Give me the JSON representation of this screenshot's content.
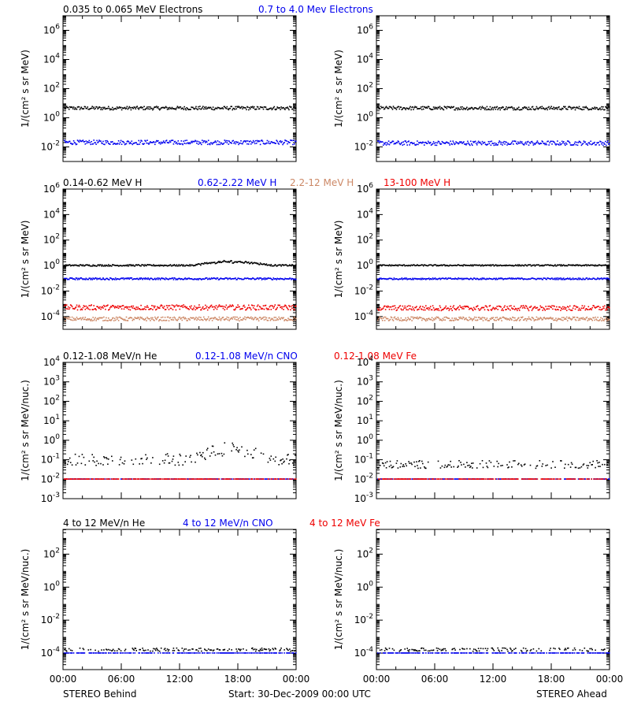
{
  "colors": {
    "black": "#000000",
    "blue": "#0000ee",
    "salmon": "#cc8866",
    "red": "#ee0000"
  },
  "footer": {
    "left": "STEREO Behind",
    "center": "Start: 30-Dec-2009 00:00 UTC",
    "right": "STEREO Ahead"
  },
  "chart_data": [
    {
      "type": "scatter",
      "row": "electrons",
      "legend": [
        {
          "label": "0.035 to 0.065 MeV Electrons",
          "color": "#000000"
        },
        {
          "label": "0.7 to 4.0 Mev Electrons",
          "color": "#0000ee"
        }
      ],
      "ylabel": "1/(cm² s sr MeV)",
      "yscale": "log",
      "ylim_log10": [
        -3,
        7
      ],
      "yticks_log10": [
        -2,
        0,
        2,
        4,
        6
      ],
      "xlim_hours": [
        0,
        24
      ],
      "xticks": [
        "00:00",
        "06:00",
        "12:00",
        "18:00",
        "00:00"
      ],
      "panels": [
        {
          "spacecraft": "STEREO Behind",
          "series": [
            {
              "color": "#000000",
              "log10_level": 0.65,
              "spread": 0.12
            },
            {
              "color": "#0000ee",
              "log10_level": -1.7,
              "spread": 0.15
            }
          ]
        },
        {
          "spacecraft": "STEREO Ahead",
          "series": [
            {
              "color": "#000000",
              "log10_level": 0.65,
              "spread": 0.12
            },
            {
              "color": "#0000ee",
              "log10_level": -1.75,
              "spread": 0.15
            }
          ]
        }
      ]
    },
    {
      "type": "scatter",
      "row": "protons",
      "legend": [
        {
          "label": "0.14-0.62 MeV H",
          "color": "#000000"
        },
        {
          "label": "0.62-2.22 MeV H",
          "color": "#0000ee"
        },
        {
          "label": "2.2-12 MeV H",
          "color": "#cc8866"
        },
        {
          "label": "13-100 MeV H",
          "color": "#ee0000"
        }
      ],
      "ylabel": "1/(cm² s sr MeV)",
      "yscale": "log",
      "ylim_log10": [
        -5,
        6
      ],
      "yticks_log10": [
        -4,
        -2,
        0,
        2,
        4,
        6
      ],
      "xlim_hours": [
        0,
        24
      ],
      "xticks": [
        "00:00",
        "06:00",
        "12:00",
        "18:00",
        "00:00"
      ],
      "panels": [
        {
          "spacecraft": "STEREO Behind",
          "series": [
            {
              "color": "#000000",
              "log10_level": 0.0,
              "spread": 0.06,
              "bump": 0.35
            },
            {
              "color": "#0000ee",
              "log10_level": -1.05,
              "spread": 0.07
            },
            {
              "color": "#ee0000",
              "log10_level": -3.3,
              "spread": 0.2
            },
            {
              "color": "#cc8866",
              "log10_level": -4.2,
              "spread": 0.15
            }
          ]
        },
        {
          "spacecraft": "STEREO Ahead",
          "series": [
            {
              "color": "#000000",
              "log10_level": 0.0,
              "spread": 0.05
            },
            {
              "color": "#0000ee",
              "log10_level": -1.05,
              "spread": 0.06
            },
            {
              "color": "#ee0000",
              "log10_level": -3.35,
              "spread": 0.2
            },
            {
              "color": "#cc8866",
              "log10_level": -4.2,
              "spread": 0.15
            }
          ]
        }
      ]
    },
    {
      "type": "scatter",
      "row": "heavy-low",
      "legend": [
        {
          "label": "0.12-1.08 MeV/n He",
          "color": "#000000"
        },
        {
          "label": "0.12-1.08 MeV/n CNO",
          "color": "#0000ee"
        },
        {
          "label": "0.12-1.08 MeV Fe",
          "color": "#ee0000"
        }
      ],
      "ylabel": "1/(cm² s sr MeV/nuc.)",
      "yscale": "log",
      "ylim_log10": [
        -3,
        4
      ],
      "yticks_log10": [
        -3,
        -2,
        -1,
        0,
        1,
        2,
        3,
        4
      ],
      "xlim_hours": [
        0,
        24
      ],
      "xticks": [
        "00:00",
        "06:00",
        "12:00",
        "18:00",
        "00:00"
      ],
      "panels": [
        {
          "spacecraft": "STEREO Behind",
          "series": [
            {
              "color": "#000000",
              "log10_level": -1.0,
              "spread": 0.3,
              "bump": 0.7
            },
            {
              "color": "#0000ee",
              "log10_level": -2.0,
              "spread": 0.0
            },
            {
              "color": "#ee0000",
              "log10_level": -2.0,
              "spread": 0.0
            }
          ]
        },
        {
          "spacecraft": "STEREO Ahead",
          "series": [
            {
              "color": "#000000",
              "log10_level": -1.25,
              "spread": 0.2
            },
            {
              "color": "#0000ee",
              "log10_level": -2.0,
              "spread": 0.0
            },
            {
              "color": "#ee0000",
              "log10_level": -2.0,
              "spread": 0.0
            }
          ]
        }
      ]
    },
    {
      "type": "scatter",
      "row": "heavy-high",
      "legend": [
        {
          "label": "4 to 12 MeV/n He",
          "color": "#000000"
        },
        {
          "label": "4 to 12 MeV/n CNO",
          "color": "#0000ee"
        },
        {
          "label": "4 to 12 MeV Fe",
          "color": "#ee0000"
        }
      ],
      "ylabel": "1/(cm² s sr MeV/nuc.)",
      "yscale": "log",
      "ylim_log10": [
        -5,
        3.5
      ],
      "yticks_log10": [
        -4,
        -2,
        0,
        2
      ],
      "xlim_hours": [
        0,
        24
      ],
      "xticks": [
        "00:00",
        "06:00",
        "12:00",
        "18:00",
        "00:00"
      ],
      "panels": [
        {
          "spacecraft": "STEREO Behind",
          "series": [
            {
              "color": "#0000ee",
              "log10_level": -4.0,
              "spread": 0.0
            },
            {
              "color": "#000000",
              "log10_level": -3.8,
              "spread": 0.1
            }
          ]
        },
        {
          "spacecraft": "STEREO Ahead",
          "series": [
            {
              "color": "#0000ee",
              "log10_level": -4.0,
              "spread": 0.0
            },
            {
              "color": "#000000",
              "log10_level": -3.8,
              "spread": 0.1
            }
          ]
        }
      ]
    }
  ]
}
